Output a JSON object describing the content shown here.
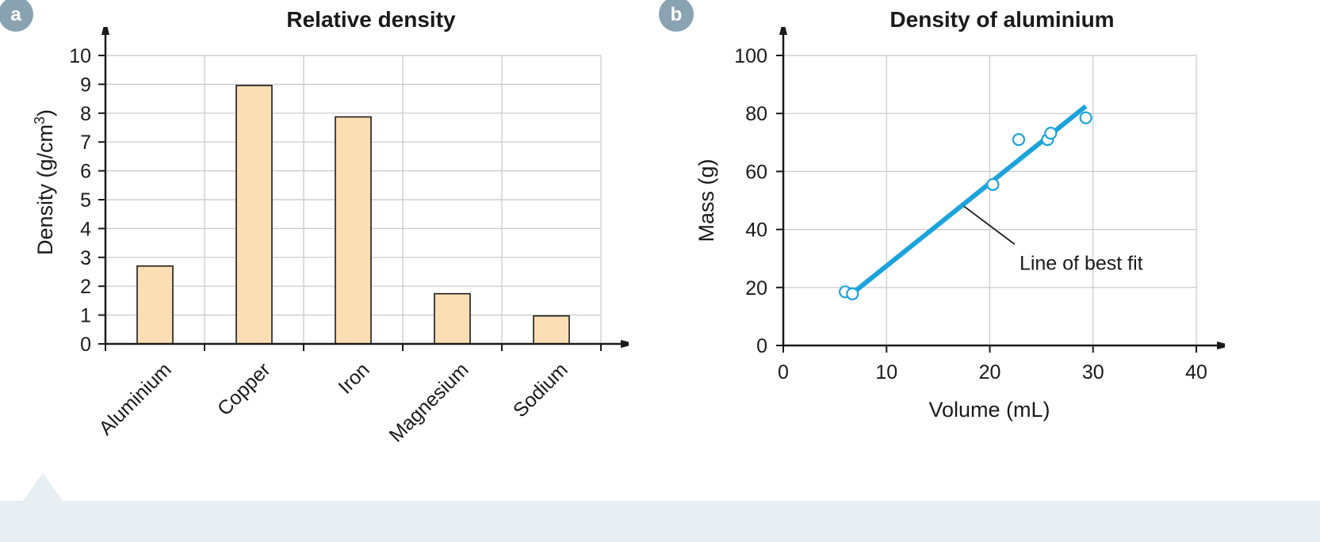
{
  "colors": {
    "bar_fill": "#fbdeb3",
    "bar_stroke": "#1a1a1a",
    "grid": "#c8c8c8",
    "axis": "#1a1a1a",
    "badge": "#8aa3b2",
    "series": "#1ba3dc",
    "footer": "#e8eff3"
  },
  "chart_data": [
    {
      "panel_label": "a",
      "type": "bar",
      "title": "Relative density",
      "xlabel": "",
      "ylabel": "Density (g/cm",
      "ylabel_sup": "3",
      "ylabel_close": ")",
      "categories": [
        "Aluminium",
        "Copper",
        "Iron",
        "Magnesium",
        "Sodium"
      ],
      "values": [
        2.7,
        8.96,
        7.87,
        1.74,
        0.97
      ],
      "yticks": [
        "0",
        "1",
        "2",
        "3",
        "4",
        "5",
        "6",
        "7",
        "8",
        "9",
        "10"
      ],
      "ylim": [
        0,
        10
      ],
      "grid": true
    },
    {
      "panel_label": "b",
      "type": "scatter",
      "title": "Density of aluminium",
      "xlabel": "Volume (mL)",
      "ylabel": "Mass (g)",
      "xlim": [
        0,
        40
      ],
      "ylim": [
        0,
        100
      ],
      "xticks": [
        "0",
        "10",
        "20",
        "30",
        "40"
      ],
      "yticks": [
        "0",
        "20",
        "40",
        "60",
        "80",
        "100"
      ],
      "grid": true,
      "points": [
        {
          "x": 6,
          "y": 18.5
        },
        {
          "x": 6.7,
          "y": 17.8
        },
        {
          "x": 20.3,
          "y": 55.5
        },
        {
          "x": 22.8,
          "y": 71
        },
        {
          "x": 25.6,
          "y": 71
        },
        {
          "x": 25.9,
          "y": 73.2
        },
        {
          "x": 29.3,
          "y": 78.5
        }
      ],
      "fit_line": {
        "x": [
          6.7,
          29.3
        ],
        "y": [
          18,
          82.5
        ]
      },
      "annotation": {
        "text": "Line of best fit",
        "x": 17.5,
        "y": 48
      }
    }
  ]
}
